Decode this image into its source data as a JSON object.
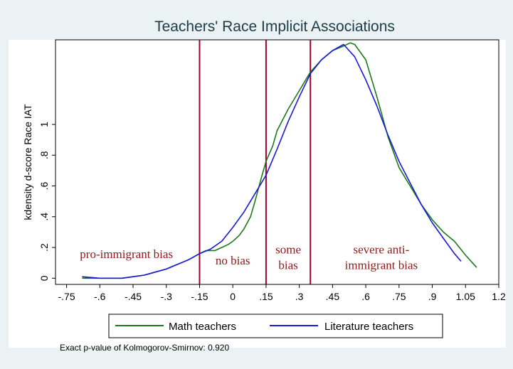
{
  "chart_data": {
    "type": "line",
    "title": "Teachers' Race Implicit Associations",
    "xlabel": "",
    "ylabel": "kdensity d-score Race IAT",
    "xlim": [
      -0.8,
      1.2
    ],
    "ylim": [
      -0.04,
      1.55
    ],
    "x_ticks": [
      -0.75,
      -0.6,
      -0.45,
      -0.3,
      -0.15,
      0,
      0.15,
      0.3,
      0.45,
      0.6,
      0.75,
      0.9,
      1.05,
      1.2
    ],
    "x_tick_labels": [
      "-.75",
      "-.6",
      "-.45",
      "-.3",
      "-.15",
      "0",
      ".15",
      ".3",
      ".45",
      ".6",
      ".75",
      ".9",
      "1.05",
      "1.2"
    ],
    "y_ticks": [
      0,
      0.2,
      0.4,
      0.6,
      0.8,
      1
    ],
    "y_tick_labels": [
      "0",
      ".2",
      ".4",
      ".6",
      ".8",
      "1"
    ],
    "grid": false,
    "legend_position": "bottom",
    "vertical_lines": [
      -0.15,
      0.15,
      0.35
    ],
    "vertical_line_color": "#a00030",
    "region_labels": [
      {
        "lines": [
          "pro-immigrant bias"
        ],
        "x": -0.48,
        "y": 0.13
      },
      {
        "lines": [
          "no bias"
        ],
        "x": 0,
        "y": 0.09
      },
      {
        "lines": [
          "some",
          "bias"
        ],
        "x": 0.25,
        "y": 0.16
      },
      {
        "lines": [
          "severe anti-",
          "immigrant bias"
        ],
        "x": 0.67,
        "y": 0.16
      }
    ],
    "series": [
      {
        "name": "Math teachers",
        "color": "#1a7a1a",
        "x": [
          -0.68,
          -0.6,
          -0.55,
          -0.5,
          -0.45,
          -0.4,
          -0.35,
          -0.3,
          -0.25,
          -0.2,
          -0.15,
          -0.12,
          -0.1,
          -0.08,
          -0.05,
          -0.02,
          0,
          0.03,
          0.05,
          0.08,
          0.1,
          0.13,
          0.15,
          0.18,
          0.2,
          0.25,
          0.3,
          0.35,
          0.4,
          0.45,
          0.5,
          0.53,
          0.55,
          0.6,
          0.65,
          0.7,
          0.75,
          0.8,
          0.85,
          0.9,
          0.95,
          1.0,
          1.05,
          1.1
        ],
        "y": [
          0.0,
          0.0,
          0.0,
          0.0,
          0.01,
          0.02,
          0.04,
          0.06,
          0.09,
          0.12,
          0.16,
          0.18,
          0.18,
          0.18,
          0.2,
          0.22,
          0.24,
          0.28,
          0.32,
          0.4,
          0.5,
          0.66,
          0.76,
          0.86,
          0.96,
          1.1,
          1.22,
          1.34,
          1.42,
          1.48,
          1.51,
          1.53,
          1.52,
          1.42,
          1.18,
          0.92,
          0.72,
          0.6,
          0.48,
          0.38,
          0.3,
          0.24,
          0.15,
          0.07
        ]
      },
      {
        "name": "Literature teachers",
        "color": "#1a1ad6",
        "x": [
          -0.68,
          -0.6,
          -0.55,
          -0.5,
          -0.45,
          -0.4,
          -0.35,
          -0.3,
          -0.25,
          -0.2,
          -0.15,
          -0.1,
          -0.05,
          0,
          0.05,
          0.1,
          0.15,
          0.2,
          0.25,
          0.3,
          0.35,
          0.4,
          0.45,
          0.5,
          0.55,
          0.6,
          0.65,
          0.7,
          0.75,
          0.8,
          0.85,
          0.9,
          0.95,
          1.0,
          1.03
        ],
        "y": [
          0.01,
          0.0,
          0.0,
          0.0,
          0.01,
          0.02,
          0.04,
          0.06,
          0.09,
          0.12,
          0.16,
          0.19,
          0.24,
          0.33,
          0.43,
          0.55,
          0.67,
          0.84,
          1.02,
          1.18,
          1.33,
          1.42,
          1.48,
          1.52,
          1.44,
          1.29,
          1.12,
          0.93,
          0.76,
          0.62,
          0.48,
          0.36,
          0.26,
          0.16,
          0.11
        ]
      }
    ],
    "note": "Exact p-value of Kolmogorov-Smirnov: 0.920"
  }
}
